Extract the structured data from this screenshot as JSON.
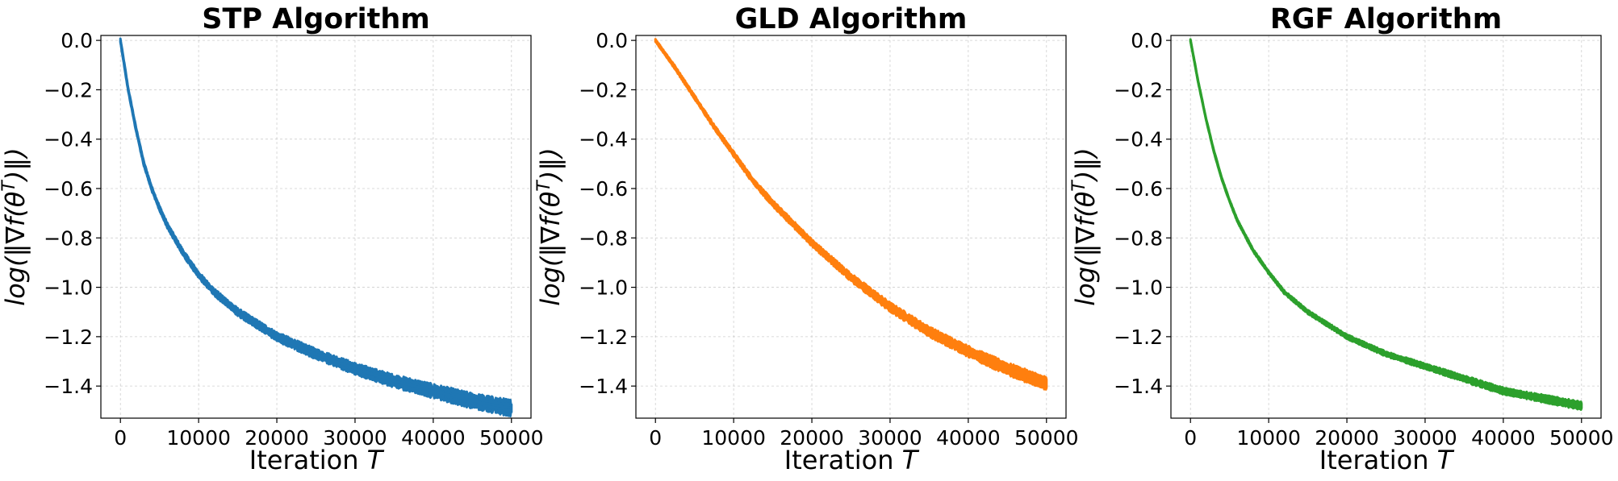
{
  "chart_data": [
    {
      "type": "line",
      "title": "STP Algorithm",
      "xlabel": "Iteration T",
      "ylabel": "log(‖∇f(θ^T)‖)",
      "xlim": [
        -2500,
        52500
      ],
      "ylim": [
        -1.53,
        0.02
      ],
      "xticks": [
        "0",
        "10000",
        "20000",
        "30000",
        "40000",
        "50000"
      ],
      "yticks": [
        "0.0",
        "−0.2",
        "−0.4",
        "−0.6",
        "−0.8",
        "−1.0",
        "−1.2",
        "−1.4"
      ],
      "grid": true,
      "color": "#1f77b4",
      "series": [
        {
          "x": [
            0,
            1000,
            2000,
            3000,
            4000,
            5000,
            6000,
            8000,
            10000,
            12000,
            15000,
            20000,
            25000,
            30000,
            35000,
            40000,
            45000,
            50000
          ],
          "y": [
            0.0,
            -0.2,
            -0.36,
            -0.5,
            -0.6,
            -0.68,
            -0.75,
            -0.86,
            -0.95,
            -1.02,
            -1.1,
            -1.2,
            -1.27,
            -1.33,
            -1.38,
            -1.42,
            -1.46,
            -1.49
          ],
          "band_width": 0.05
        }
      ]
    },
    {
      "type": "line",
      "title": "GLD Algorithm",
      "xlabel": "Iteration T",
      "ylabel": "log(‖∇f(θ^T)‖)",
      "xlim": [
        -2500,
        52500
      ],
      "ylim": [
        -1.53,
        0.02
      ],
      "xticks": [
        "0",
        "10000",
        "20000",
        "30000",
        "40000",
        "50000"
      ],
      "yticks": [
        "0.0",
        "−0.2",
        "−0.4",
        "−0.6",
        "−0.8",
        "−1.0",
        "−1.2",
        "−1.4"
      ],
      "grid": true,
      "color": "#ff7f0e",
      "series": [
        {
          "x": [
            0,
            2500,
            5000,
            7500,
            10000,
            12500,
            15000,
            17500,
            20000,
            25000,
            30000,
            35000,
            40000,
            45000,
            50000
          ],
          "y": [
            0.0,
            -0.11,
            -0.23,
            -0.35,
            -0.46,
            -0.57,
            -0.66,
            -0.74,
            -0.82,
            -0.96,
            -1.08,
            -1.18,
            -1.26,
            -1.33,
            -1.39
          ],
          "band_width": 0.04
        }
      ]
    },
    {
      "type": "line",
      "title": "RGF Algorithm",
      "xlabel": "Iteration T",
      "ylabel": "log(‖∇f(θ^T)‖)",
      "xlim": [
        -2500,
        52500
      ],
      "ylim": [
        -1.53,
        0.02
      ],
      "xticks": [
        "0",
        "10000",
        "20000",
        "30000",
        "40000",
        "50000"
      ],
      "yticks": [
        "0.0",
        "−0.2",
        "−0.4",
        "−0.6",
        "−0.8",
        "−1.0",
        "−1.2",
        "−1.4"
      ],
      "grid": true,
      "color": "#2ca02c",
      "series": [
        {
          "x": [
            0,
            1000,
            2000,
            3000,
            4000,
            5000,
            6000,
            8000,
            10000,
            12000,
            15000,
            20000,
            25000,
            30000,
            35000,
            40000,
            45000,
            50000
          ],
          "y": [
            0.0,
            -0.17,
            -0.32,
            -0.45,
            -0.56,
            -0.65,
            -0.73,
            -0.85,
            -0.94,
            -1.02,
            -1.1,
            -1.2,
            -1.27,
            -1.32,
            -1.37,
            -1.42,
            -1.45,
            -1.48
          ],
          "band_width": 0.025
        }
      ]
    }
  ]
}
